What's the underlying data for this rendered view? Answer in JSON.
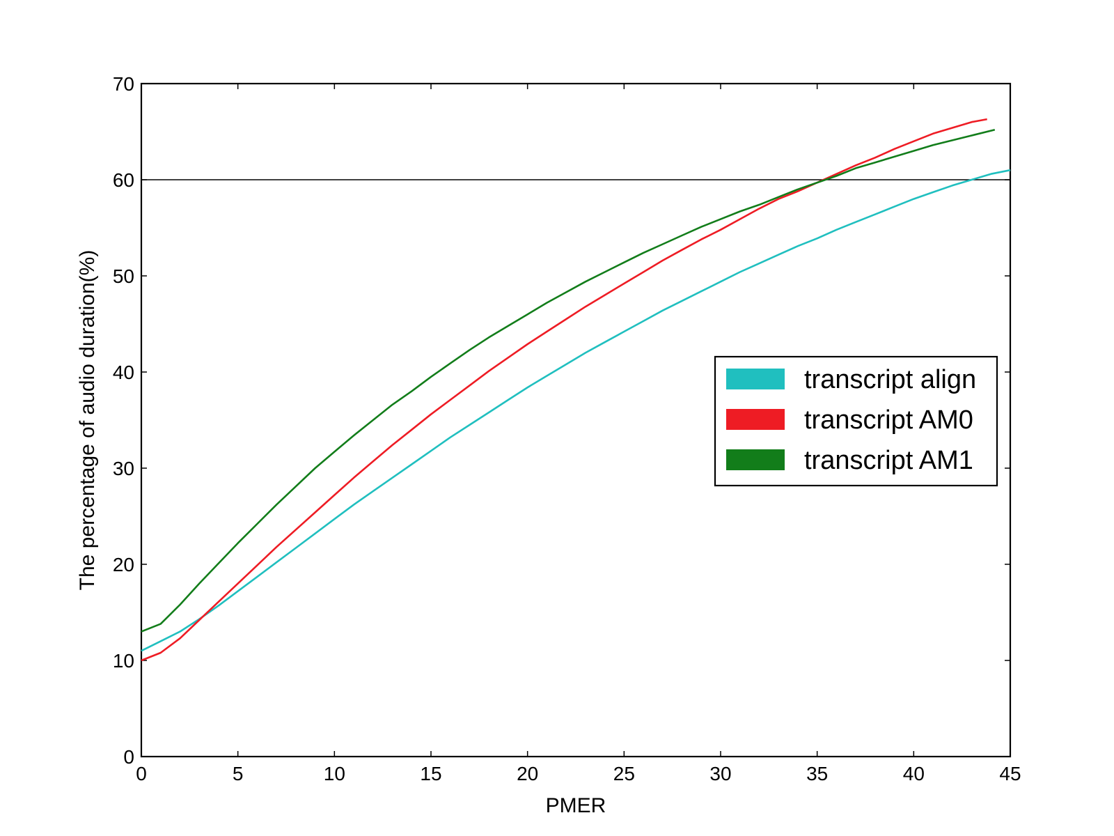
{
  "chart_data": {
    "type": "line",
    "title": "",
    "xlabel": "PMER",
    "ylabel": "The percentage of audio duration(%)",
    "xlim": [
      0,
      45
    ],
    "ylim": [
      0,
      70
    ],
    "x_ticks": [
      0,
      5,
      10,
      15,
      20,
      25,
      30,
      35,
      40,
      45
    ],
    "y_ticks": [
      0,
      10,
      20,
      30,
      40,
      50,
      60,
      70
    ],
    "x_tick_labels": [
      "0",
      "5",
      "10",
      "15",
      "20",
      "25",
      "30",
      "35",
      "40",
      "45"
    ],
    "y_tick_labels": [
      "0",
      "10",
      "20",
      "30",
      "40",
      "50",
      "60",
      "70"
    ],
    "grid": false,
    "reference_line": {
      "axis": "y",
      "value": 60,
      "color": "#000000"
    },
    "legend": {
      "placement": "center-right"
    },
    "series": [
      {
        "name": "transcript align",
        "color": "#20bfbf",
        "x": [
          0,
          1,
          2,
          3,
          4,
          5,
          6,
          7,
          8,
          9,
          10,
          11,
          12,
          13,
          14,
          15,
          16,
          17,
          18,
          19,
          20,
          21,
          22,
          23,
          24,
          25,
          26,
          27,
          28,
          29,
          30,
          31,
          32,
          33,
          34,
          35,
          36,
          37,
          38,
          39,
          40,
          41,
          42,
          43,
          44,
          45
        ],
        "y": [
          11,
          12,
          13,
          14.3,
          15.7,
          17.2,
          18.7,
          20.2,
          21.7,
          23.2,
          24.7,
          26.2,
          27.6,
          29,
          30.4,
          31.8,
          33.2,
          34.5,
          35.8,
          37.1,
          38.4,
          39.6,
          40.8,
          42,
          43.1,
          44.2,
          45.3,
          46.4,
          47.4,
          48.4,
          49.4,
          50.4,
          51.3,
          52.2,
          53.1,
          53.9,
          54.8,
          55.6,
          56.4,
          57.2,
          58,
          58.7,
          59.4,
          60,
          60.6,
          61
        ]
      },
      {
        "name": "transcript AM0",
        "color": "#ee1c24",
        "x": [
          0,
          1,
          2,
          3,
          4,
          5,
          6,
          7,
          8,
          9,
          10,
          11,
          12,
          13,
          14,
          15,
          16,
          17,
          18,
          19,
          20,
          21,
          22,
          23,
          24,
          25,
          26,
          27,
          28,
          29,
          30,
          31,
          32,
          33,
          34,
          35,
          36,
          37,
          38,
          39,
          40,
          41,
          42,
          43,
          43.8
        ],
        "y": [
          10,
          10.8,
          12.3,
          14.2,
          16.1,
          18,
          19.9,
          21.8,
          23.6,
          25.4,
          27.2,
          29,
          30.7,
          32.4,
          34,
          35.6,
          37.1,
          38.6,
          40.1,
          41.5,
          42.9,
          44.2,
          45.5,
          46.8,
          48,
          49.2,
          50.4,
          51.6,
          52.7,
          53.8,
          54.8,
          55.9,
          57,
          58,
          58.8,
          59.7,
          60.6,
          61.5,
          62.3,
          63.2,
          64,
          64.8,
          65.4,
          66,
          66.3
        ]
      },
      {
        "name": "transcript AM1",
        "color": "#127d1a",
        "x": [
          0,
          1,
          2,
          3,
          4,
          5,
          6,
          7,
          8,
          9,
          10,
          11,
          12,
          13,
          14,
          15,
          16,
          17,
          18,
          19,
          20,
          21,
          22,
          23,
          24,
          25,
          26,
          27,
          28,
          29,
          30,
          31,
          32,
          33,
          34,
          35,
          36,
          37,
          38,
          39,
          40,
          41,
          42,
          43,
          44.2
        ],
        "y": [
          13,
          13.8,
          15.8,
          18,
          20.1,
          22.2,
          24.2,
          26.2,
          28.1,
          30,
          31.7,
          33.4,
          35,
          36.6,
          38,
          39.5,
          40.9,
          42.3,
          43.6,
          44.8,
          46,
          47.2,
          48.3,
          49.4,
          50.4,
          51.4,
          52.4,
          53.3,
          54.2,
          55.1,
          55.9,
          56.7,
          57.4,
          58.2,
          59,
          59.7,
          60.4,
          61.2,
          61.8,
          62.4,
          63,
          63.6,
          64.1,
          64.6,
          65.2
        ]
      }
    ]
  }
}
